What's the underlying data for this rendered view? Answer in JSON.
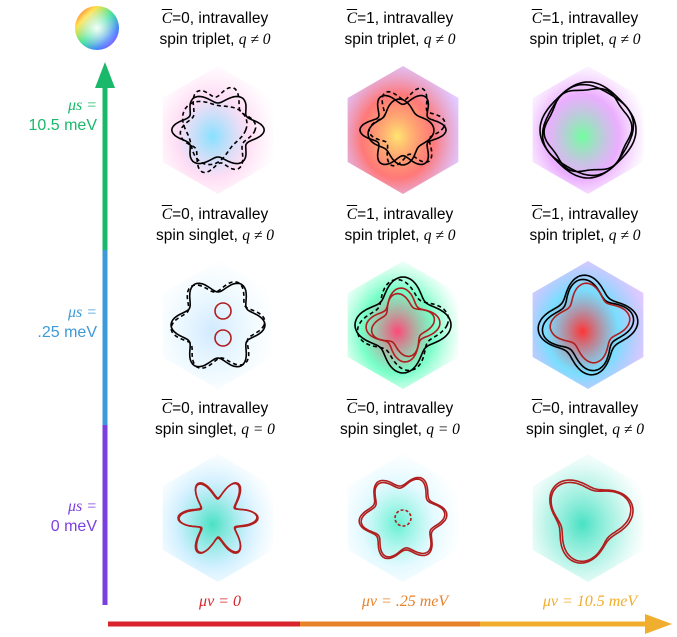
{
  "grid": [
    [
      {
        "chern": "=0, intravalley",
        "spin_label": "spin triplet, ",
        "q_label": "q ≠ 0"
      },
      {
        "chern": "=1, intravalley",
        "spin_label": "spin triplet, ",
        "q_label": "q ≠ 0"
      },
      {
        "chern": "=1, intravalley",
        "spin_label": "spin triplet, ",
        "q_label": "q ≠ 0"
      }
    ],
    [
      {
        "chern": "=0, intravalley",
        "spin_label": "spin singlet, ",
        "q_label": "q ≠ 0"
      },
      {
        "chern": "=1, intravalley",
        "spin_label": "spin triplet, ",
        "q_label": "q ≠ 0"
      },
      {
        "chern": "=1, intravalley",
        "spin_label": "spin triplet, ",
        "q_label": "q ≠ 0"
      }
    ],
    [
      {
        "chern": "=0, intravalley",
        "spin_label": "spin singlet, ",
        "q_label": "q = 0"
      },
      {
        "chern": "=0, intravalley",
        "spin_label": "spin singlet, ",
        "q_label": "q = 0"
      },
      {
        "chern": "=0, intravalley",
        "spin_label": "spin singlet, ",
        "q_label": "q ≠ 0"
      }
    ]
  ],
  "chern_symbol": "C",
  "y_axis": {
    "labels": [
      {
        "mu": "μs =",
        "value": "10.5 meV",
        "color": "#19b86a"
      },
      {
        "mu": "μs =",
        "value": ".25 meV",
        "color": "#3d9ad8"
      },
      {
        "mu": "μs =",
        "value": "0 meV",
        "color": "#7b3fe0"
      }
    ]
  },
  "x_axis": {
    "labels": [
      {
        "text": "μv = 0",
        "color": "#d8242a"
      },
      {
        "text": "μv = .25 meV",
        "color": "#e8822a"
      },
      {
        "text": "μv = 10.5 meV",
        "color": "#f1ad2e"
      }
    ]
  },
  "colors": {
    "fermi_dark_red": "#b01e1e",
    "fermi_black": "#000000"
  }
}
